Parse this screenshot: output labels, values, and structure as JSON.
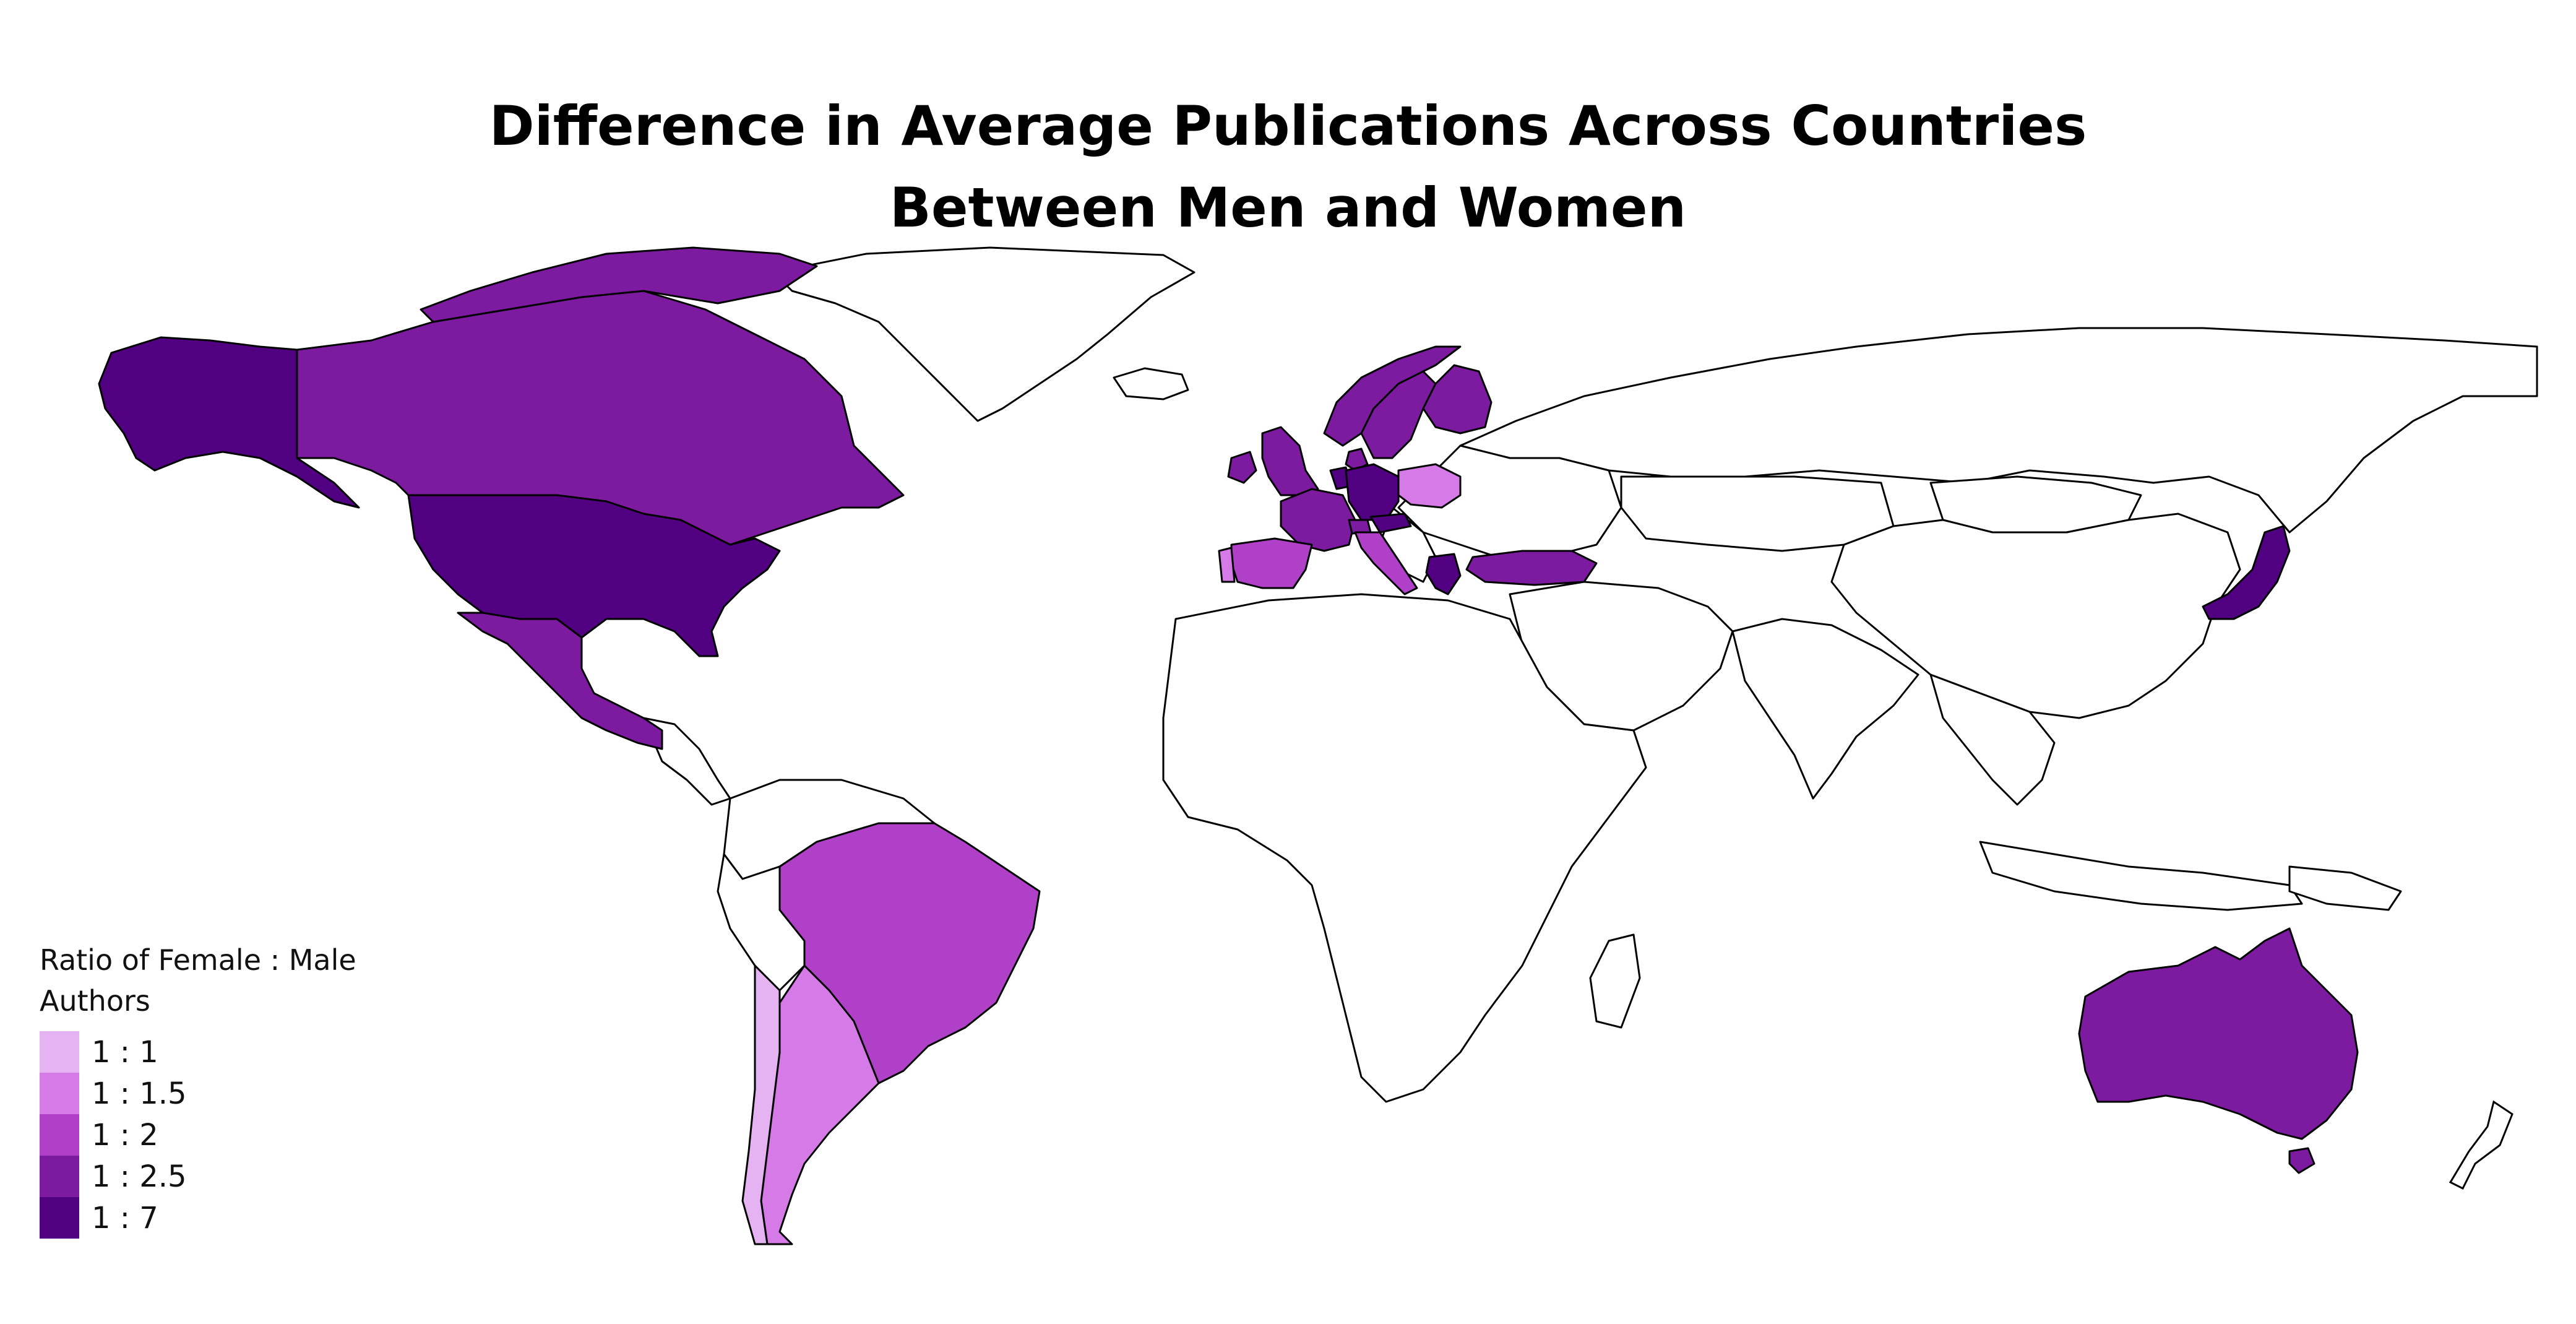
{
  "title": {
    "line1": "Difference in Average Publications Across Countries",
    "line2": "Between Men and Women"
  },
  "legend": {
    "title_line1": "Ratio of Female : Male",
    "title_line2": "Authors",
    "items": [
      {
        "label": "1 : 1",
        "color": "#e6b3f2"
      },
      {
        "label": "1 : 1.5",
        "color": "#d67ae8"
      },
      {
        "label": "1 : 2",
        "color": "#b040c8"
      },
      {
        "label": "1 : 2.5",
        "color": "#7c1aa0"
      },
      {
        "label": "1 : 7",
        "color": "#520082"
      }
    ]
  },
  "map_data": {
    "type": "choropleth",
    "regions": [
      {
        "name": "United States",
        "category": 4
      },
      {
        "name": "Alaska",
        "category": 4
      },
      {
        "name": "Canada",
        "category": 3
      },
      {
        "name": "Mexico",
        "category": 3
      },
      {
        "name": "Brazil",
        "category": 2
      },
      {
        "name": "Argentina",
        "category": 1
      },
      {
        "name": "Chile",
        "category": 0
      },
      {
        "name": "Australia",
        "category": 3
      },
      {
        "name": "Japan",
        "category": 4
      },
      {
        "name": "United Kingdom",
        "category": 3
      },
      {
        "name": "Germany",
        "category": 4
      },
      {
        "name": "France",
        "category": 3
      },
      {
        "name": "Spain",
        "category": 2
      },
      {
        "name": "Portugal",
        "category": 1
      },
      {
        "name": "Italy",
        "category": 2
      },
      {
        "name": "Poland",
        "category": 1
      },
      {
        "name": "Norway",
        "category": 3
      },
      {
        "name": "Sweden",
        "category": 3
      },
      {
        "name": "Finland",
        "category": 3
      },
      {
        "name": "Turkey",
        "category": 3
      },
      {
        "name": "Greece",
        "category": 4
      },
      {
        "name": "Netherlands",
        "category": 4
      },
      {
        "name": "Switzerland",
        "category": 3
      },
      {
        "name": "Austria",
        "category": 4
      },
      {
        "name": "Ireland",
        "category": 3
      },
      {
        "name": "Denmark",
        "category": 3
      }
    ]
  }
}
